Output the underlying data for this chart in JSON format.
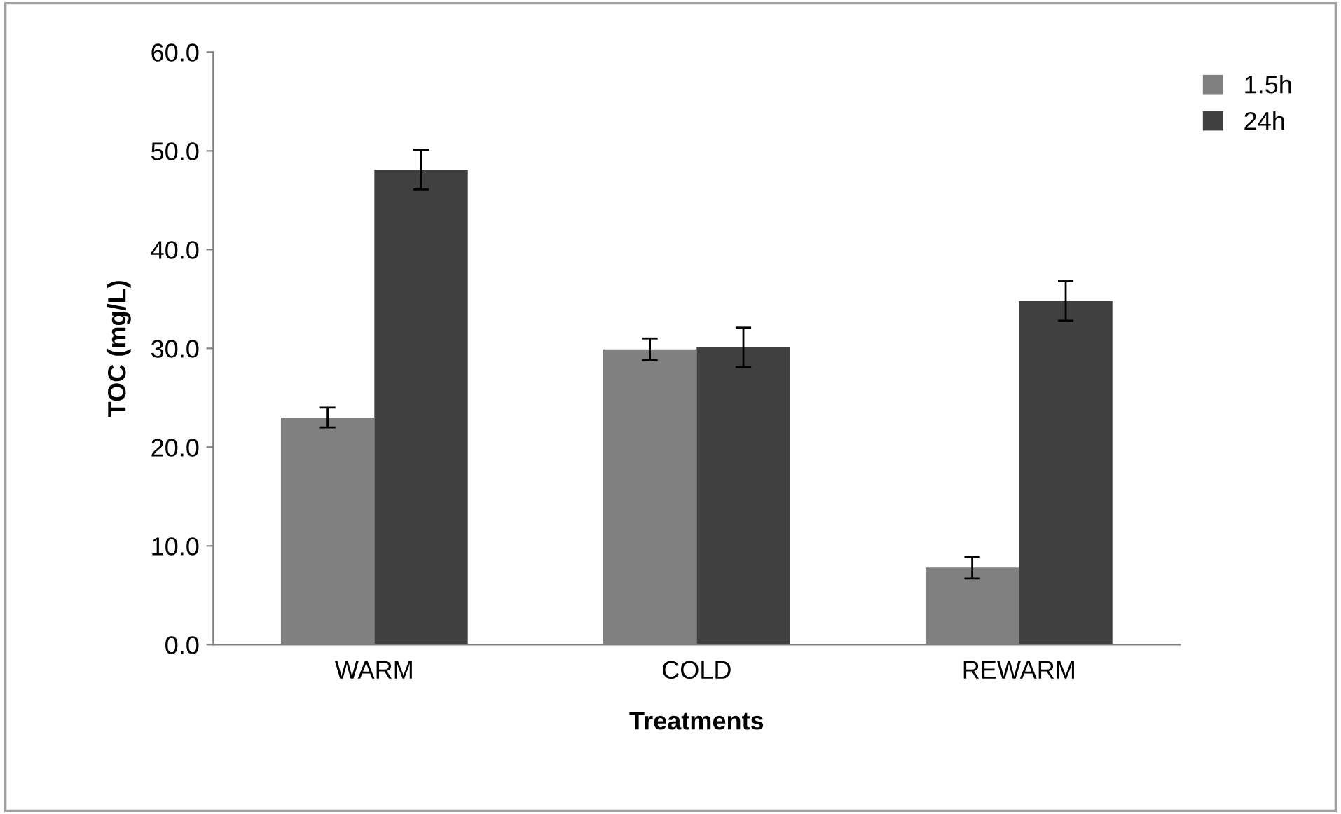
{
  "chart_data": {
    "type": "bar",
    "xlabel": "Treatments",
    "ylabel": "TOC (mg/L)",
    "categories": [
      "WARM",
      "COLD",
      "REWARM"
    ],
    "series": [
      {
        "name": "1.5h",
        "color": "#808080",
        "values": [
          23.0,
          29.9,
          7.8
        ],
        "errors": [
          1.0,
          1.1,
          1.1
        ]
      },
      {
        "name": "24h",
        "color": "#404040",
        "values": [
          48.1,
          30.1,
          34.8
        ],
        "errors": [
          2.0,
          2.0,
          2.0
        ]
      }
    ],
    "ylim": [
      0,
      60
    ],
    "yticks": [
      {
        "value": 0,
        "label": "0.0"
      },
      {
        "value": 10,
        "label": "10.0"
      },
      {
        "value": 20,
        "label": "20.0"
      },
      {
        "value": 30,
        "label": "30.0"
      },
      {
        "value": 40,
        "label": "40.0"
      },
      {
        "value": 50,
        "label": "50.0"
      },
      {
        "value": 60,
        "label": "60.0"
      }
    ],
    "grid": false,
    "legend": "top right"
  }
}
